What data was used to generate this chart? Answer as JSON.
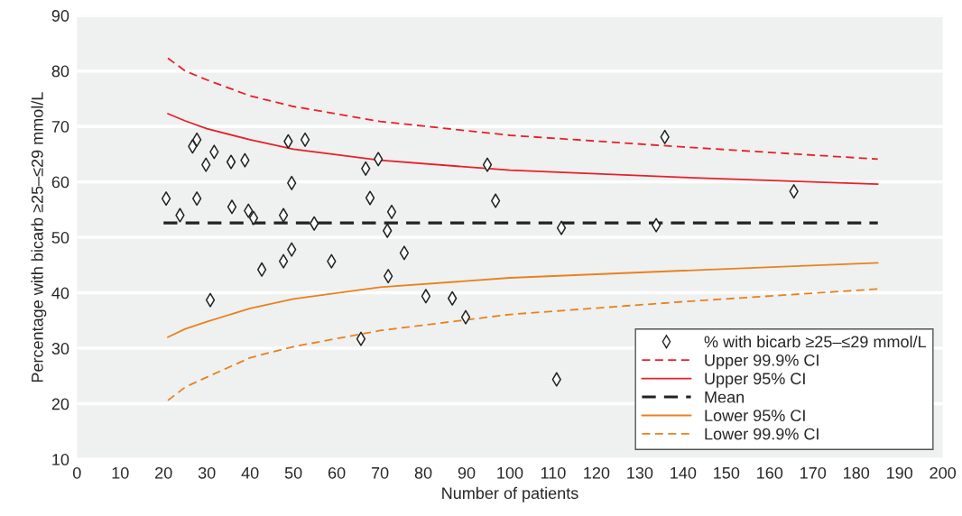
{
  "chart_data": {
    "type": "scatter",
    "xlabel": "Number of patients",
    "ylabel": "Percentage with bicarb ≥25–≤29 mmol/L",
    "xlim": [
      0,
      200
    ],
    "xticks": [
      0,
      10,
      20,
      30,
      40,
      50,
      60,
      70,
      80,
      90,
      100,
      110,
      120,
      130,
      140,
      150,
      160,
      170,
      180,
      190,
      200
    ],
    "ylim": [
      10,
      90
    ],
    "yticks": [
      10,
      20,
      30,
      40,
      50,
      60,
      70,
      80,
      90
    ],
    "grid": "y",
    "legend": "bottom right",
    "series": [
      {
        "name": "% with bicarb ≥25–≤29 mmol/L",
        "marker": "diamond",
        "color": "#222222",
        "x": [
          20.6,
          23.8,
          26.7,
          27.7,
          27.7,
          29.8,
          30.8,
          31.7,
          35.6,
          35.8,
          38.8,
          39.6,
          40.8,
          42.7,
          47.7,
          47.7,
          48.8,
          49.6,
          49.6,
          52.7,
          54.8,
          58.8,
          65.6,
          66.7,
          67.7,
          69.6,
          71.7,
          71.9,
          72.7,
          75.6,
          80.6,
          86.7,
          89.8,
          94.8,
          96.7,
          110.8,
          111.9,
          133.8,
          135.8,
          165.6
        ],
        "values": [
          57.0,
          54.0,
          66.4,
          67.6,
          57.0,
          63.1,
          38.7,
          65.4,
          63.6,
          55.5,
          63.9,
          54.8,
          53.5,
          44.2,
          54.0,
          45.7,
          67.3,
          59.8,
          47.8,
          67.6,
          52.5,
          45.7,
          31.7,
          62.4,
          57.1,
          64.1,
          51.2,
          43.0,
          54.6,
          47.2,
          39.4,
          39.0,
          35.6,
          63.1,
          56.6,
          24.4,
          51.7,
          52.2,
          68.1,
          58.3
        ]
      },
      {
        "name": "Upper 99.9% CI",
        "type": "line",
        "line_style": "dashed",
        "color": "#e8202a",
        "x": [
          21,
          25,
          30,
          40,
          50,
          70,
          100,
          140,
          185
        ],
        "values": [
          82.3,
          80.0,
          78.4,
          75.5,
          73.6,
          70.9,
          68.4,
          66.3,
          64.1
        ]
      },
      {
        "name": "Upper 95% CI",
        "type": "line",
        "line_style": "solid",
        "color": "#e8202a",
        "x": [
          21,
          25,
          30,
          40,
          50,
          70,
          100,
          140,
          185
        ],
        "values": [
          72.3,
          71.0,
          69.6,
          67.6,
          65.9,
          63.9,
          62.1,
          60.8,
          59.6
        ]
      },
      {
        "name": "Mean",
        "type": "line",
        "line_style": "dashed",
        "color": "#222222",
        "x": [
          20,
          185
        ],
        "values": [
          52.6,
          52.6
        ]
      },
      {
        "name": "Lower 95% CI",
        "type": "line",
        "line_style": "solid",
        "color": "#e8821e",
        "x": [
          21,
          25,
          30,
          40,
          50,
          70,
          100,
          140,
          185
        ],
        "values": [
          32.0,
          33.5,
          34.8,
          37.2,
          38.9,
          41.0,
          42.7,
          44.0,
          45.4
        ]
      },
      {
        "name": "Lower 99.9% CI",
        "type": "line",
        "line_style": "dashed",
        "color": "#e8821e",
        "x": [
          21,
          25,
          30,
          40,
          50,
          70,
          100,
          140,
          185
        ],
        "values": [
          20.6,
          23.0,
          24.8,
          28.3,
          30.3,
          33.2,
          36.1,
          38.4,
          40.7
        ]
      }
    ]
  }
}
